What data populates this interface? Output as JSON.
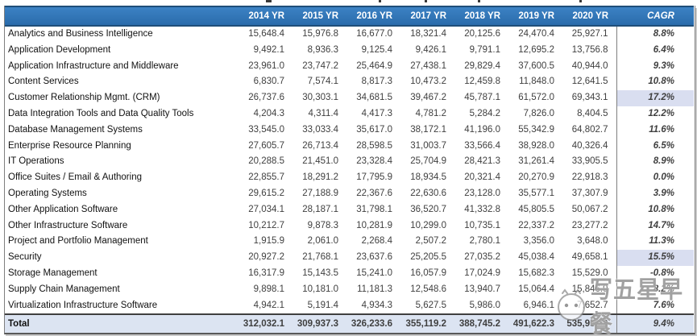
{
  "table": {
    "label_header": "",
    "columns": [
      "2014 YR",
      "2015 YR",
      "2016 YR",
      "2017 YR",
      "2018 YR",
      "2019 YR",
      "2020 YR",
      "CAGR"
    ],
    "rows": [
      {
        "label": "Analytics and Business Intelligence",
        "values": [
          "15,648.4",
          "15,976.8",
          "16,677.0",
          "18,321.4",
          "20,125.6",
          "24,470.4",
          "25,927.1"
        ],
        "cagr": "8.8%",
        "highlight": false
      },
      {
        "label": "Application Development",
        "values": [
          "9,492.1",
          "8,936.3",
          "9,125.4",
          "9,426.1",
          "9,791.1",
          "12,695.2",
          "13,756.8"
        ],
        "cagr": "6.4%",
        "highlight": false
      },
      {
        "label": "Application Infrastructure and Middleware",
        "values": [
          "23,961.0",
          "23,747.2",
          "25,464.9",
          "27,438.1",
          "29,829.4",
          "37,600.5",
          "40,944.0"
        ],
        "cagr": "9.3%",
        "highlight": false
      },
      {
        "label": "Content Services",
        "values": [
          "6,830.7",
          "7,574.1",
          "8,817.3",
          "10,473.2",
          "12,459.8",
          "11,848.0",
          "12,641.5"
        ],
        "cagr": "10.8%",
        "highlight": false
      },
      {
        "label": "Customer Relationship Mgmt. (CRM)",
        "values": [
          "26,737.6",
          "30,303.1",
          "34,681.5",
          "39,467.2",
          "45,787.1",
          "61,572.0",
          "69,343.1"
        ],
        "cagr": "17.2%",
        "highlight": true
      },
      {
        "label": "Data Integration Tools and Data Quality Tools",
        "values": [
          "4,204.3",
          "4,311.4",
          "4,417.3",
          "4,781.2",
          "5,284.2",
          "7,826.0",
          "8,404.5"
        ],
        "cagr": "12.2%",
        "highlight": false
      },
      {
        "label": "Database Management Systems",
        "values": [
          "33,545.0",
          "33,033.4",
          "35,617.0",
          "38,172.1",
          "41,196.0",
          "55,342.9",
          "64,802.7"
        ],
        "cagr": "11.6%",
        "highlight": false
      },
      {
        "label": "Enterprise Resource Planning",
        "values": [
          "27,605.7",
          "26,713.4",
          "28,598.5",
          "31,003.7",
          "33,566.4",
          "38,928.0",
          "40,326.4"
        ],
        "cagr": "6.5%",
        "highlight": false
      },
      {
        "label": "IT Operations",
        "values": [
          "20,288.5",
          "21,451.0",
          "23,328.4",
          "25,704.9",
          "28,421.3",
          "31,261.4",
          "33,905.5"
        ],
        "cagr": "8.9%",
        "highlight": false
      },
      {
        "label": "Office Suites / Email & Authoring",
        "values": [
          "22,855.7",
          "18,291.2",
          "17,795.9",
          "18,934.5",
          "20,321.4",
          "20,270.9",
          "22,918.3"
        ],
        "cagr": "0.0%",
        "highlight": false
      },
      {
        "label": "Operating Systems",
        "values": [
          "29,615.2",
          "27,188.9",
          "22,367.6",
          "22,630.6",
          "23,128.0",
          "35,577.1",
          "37,307.9"
        ],
        "cagr": "3.9%",
        "highlight": false
      },
      {
        "label": "Other Application Software",
        "values": [
          "27,034.1",
          "28,187.1",
          "31,798.1",
          "36,520.7",
          "41,332.8",
          "45,805.5",
          "50,067.2"
        ],
        "cagr": "10.8%",
        "highlight": false
      },
      {
        "label": "Other Infrastructure Software",
        "values": [
          "10,212.7",
          "9,878.3",
          "10,281.9",
          "10,299.0",
          "10,735.1",
          "22,337.2",
          "23,277.2"
        ],
        "cagr": "14.7%",
        "highlight": false
      },
      {
        "label": "Project and Portfolio Management",
        "values": [
          "1,915.9",
          "2,061.0",
          "2,268.4",
          "2,507.2",
          "2,780.1",
          "3,356.0",
          "3,648.0"
        ],
        "cagr": "11.3%",
        "highlight": false
      },
      {
        "label": "Security",
        "values": [
          "20,927.2",
          "21,768.1",
          "23,637.6",
          "25,205.5",
          "27,035.2",
          "45,038.4",
          "49,658.1"
        ],
        "cagr": "15.5%",
        "highlight": true
      },
      {
        "label": "Storage Management",
        "values": [
          "16,317.9",
          "15,143.5",
          "15,241.0",
          "16,057.9",
          "17,024.9",
          "15,682.3",
          "15,529.0"
        ],
        "cagr": "-0.8%",
        "highlight": false
      },
      {
        "label": "Supply Chain Management",
        "values": [
          "9,898.1",
          "10,181.0",
          "11,181.3",
          "12,548.6",
          "13,940.7",
          "15,064.4",
          "15,846.9"
        ],
        "cagr": "8.2%",
        "highlight": false
      },
      {
        "label": "Virtualization Infrastructure Software",
        "values": [
          "4,942.1",
          "5,191.4",
          "4,934.3",
          "5,627.5",
          "5,986.0",
          "6,946.1",
          "7,652.7"
        ],
        "cagr": "7.6%",
        "highlight": false
      }
    ],
    "total": {
      "label": "Total",
      "values": [
        "312,032.1",
        "309,937.3",
        "326,233.6",
        "355,119.2",
        "388,745.2",
        "491,622.3",
        "535,956.9"
      ],
      "cagr": "9.4%"
    }
  },
  "watermark": {
    "text": "写五星早餐",
    "logo": "smiley-face"
  },
  "colors": {
    "header_bg": "#2e75b6",
    "header_border": "#1f4e79",
    "header_text": "#ffffff",
    "cagr_highlight_bg": "#d9def0",
    "total_row_bg": "#dce4f2",
    "table_border": "#7f7f7f",
    "value_text": "#3f3f3f"
  },
  "chart_data": {
    "type": "table",
    "title": "",
    "categories": [
      "2014 YR",
      "2015 YR",
      "2016 YR",
      "2017 YR",
      "2018 YR",
      "2019 YR",
      "2020 YR"
    ],
    "series": [
      {
        "name": "Analytics and Business Intelligence",
        "values": [
          15648.4,
          15976.8,
          16677.0,
          18321.4,
          20125.6,
          24470.4,
          25927.1
        ],
        "cagr_pct": 8.8
      },
      {
        "name": "Application Development",
        "values": [
          9492.1,
          8936.3,
          9125.4,
          9426.1,
          9791.1,
          12695.2,
          13756.8
        ],
        "cagr_pct": 6.4
      },
      {
        "name": "Application Infrastructure and Middleware",
        "values": [
          23961.0,
          23747.2,
          25464.9,
          27438.1,
          29829.4,
          37600.5,
          40944.0
        ],
        "cagr_pct": 9.3
      },
      {
        "name": "Content Services",
        "values": [
          6830.7,
          7574.1,
          8817.3,
          10473.2,
          12459.8,
          11848.0,
          12641.5
        ],
        "cagr_pct": 10.8
      },
      {
        "name": "Customer Relationship Mgmt. (CRM)",
        "values": [
          26737.6,
          30303.1,
          34681.5,
          39467.2,
          45787.1,
          61572.0,
          69343.1
        ],
        "cagr_pct": 17.2
      },
      {
        "name": "Data Integration Tools and Data Quality Tools",
        "values": [
          4204.3,
          4311.4,
          4417.3,
          4781.2,
          5284.2,
          7826.0,
          8404.5
        ],
        "cagr_pct": 12.2
      },
      {
        "name": "Database Management Systems",
        "values": [
          33545.0,
          33033.4,
          35617.0,
          38172.1,
          41196.0,
          55342.9,
          64802.7
        ],
        "cagr_pct": 11.6
      },
      {
        "name": "Enterprise Resource Planning",
        "values": [
          27605.7,
          26713.4,
          28598.5,
          31003.7,
          33566.4,
          38928.0,
          40326.4
        ],
        "cagr_pct": 6.5
      },
      {
        "name": "IT Operations",
        "values": [
          20288.5,
          21451.0,
          23328.4,
          25704.9,
          28421.3,
          31261.4,
          33905.5
        ],
        "cagr_pct": 8.9
      },
      {
        "name": "Office Suites / Email & Authoring",
        "values": [
          22855.7,
          18291.2,
          17795.9,
          18934.5,
          20321.4,
          20270.9,
          22918.3
        ],
        "cagr_pct": 0.0
      },
      {
        "name": "Operating Systems",
        "values": [
          29615.2,
          27188.9,
          22367.6,
          22630.6,
          23128.0,
          35577.1,
          37307.9
        ],
        "cagr_pct": 3.9
      },
      {
        "name": "Other Application Software",
        "values": [
          27034.1,
          28187.1,
          31798.1,
          36520.7,
          41332.8,
          45805.5,
          50067.2
        ],
        "cagr_pct": 10.8
      },
      {
        "name": "Other Infrastructure Software",
        "values": [
          10212.7,
          9878.3,
          10281.9,
          10299.0,
          10735.1,
          22337.2,
          23277.2
        ],
        "cagr_pct": 14.7
      },
      {
        "name": "Project and Portfolio Management",
        "values": [
          1915.9,
          2061.0,
          2268.4,
          2507.2,
          2780.1,
          3356.0,
          3648.0
        ],
        "cagr_pct": 11.3
      },
      {
        "name": "Security",
        "values": [
          20927.2,
          21768.1,
          23637.6,
          25205.5,
          27035.2,
          45038.4,
          49658.1
        ],
        "cagr_pct": 15.5
      },
      {
        "name": "Storage Management",
        "values": [
          16317.9,
          15143.5,
          15241.0,
          16057.9,
          17024.9,
          15682.3,
          15529.0
        ],
        "cagr_pct": -0.8
      },
      {
        "name": "Supply Chain Management",
        "values": [
          9898.1,
          10181.0,
          11181.3,
          12548.6,
          13940.7,
          15064.4,
          15846.9
        ],
        "cagr_pct": 8.2
      },
      {
        "name": "Virtualization Infrastructure Software",
        "values": [
          4942.1,
          5191.4,
          4934.3,
          5627.5,
          5986.0,
          6946.1,
          7652.7
        ],
        "cagr_pct": 7.6
      }
    ],
    "total": {
      "name": "Total",
      "values": [
        312032.1,
        309937.3,
        326233.6,
        355119.2,
        388745.2,
        491622.3,
        535956.9
      ],
      "cagr_pct": 9.4
    },
    "legend_position": "none",
    "grid": false
  }
}
